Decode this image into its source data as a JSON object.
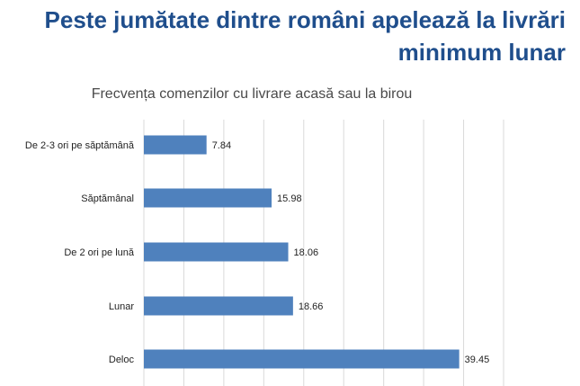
{
  "headline": {
    "line1": "Peste jumătate dintre români apelează la livrări",
    "line2": "minimum lunar"
  },
  "colors": {
    "headline": "#1f4e8c",
    "bar": "#4f81bd",
    "grid": "#d9d9d9"
  },
  "chart_data": {
    "type": "bar",
    "orientation": "horizontal",
    "title": "Frecvența comenzilor cu livrare acasă sau la birou",
    "categories": [
      "De 2-3 ori pe săptămână",
      "Săptămânal",
      "De 2 ori pe lună",
      "Lunar",
      "Deloc"
    ],
    "values": [
      7.84,
      15.98,
      18.06,
      18.66,
      39.45
    ],
    "data_labels": [
      "7.84",
      "15.98",
      "18.06",
      "18.66",
      "39.45"
    ],
    "xlim": [
      0,
      45
    ],
    "grid": true,
    "legend": "none"
  }
}
